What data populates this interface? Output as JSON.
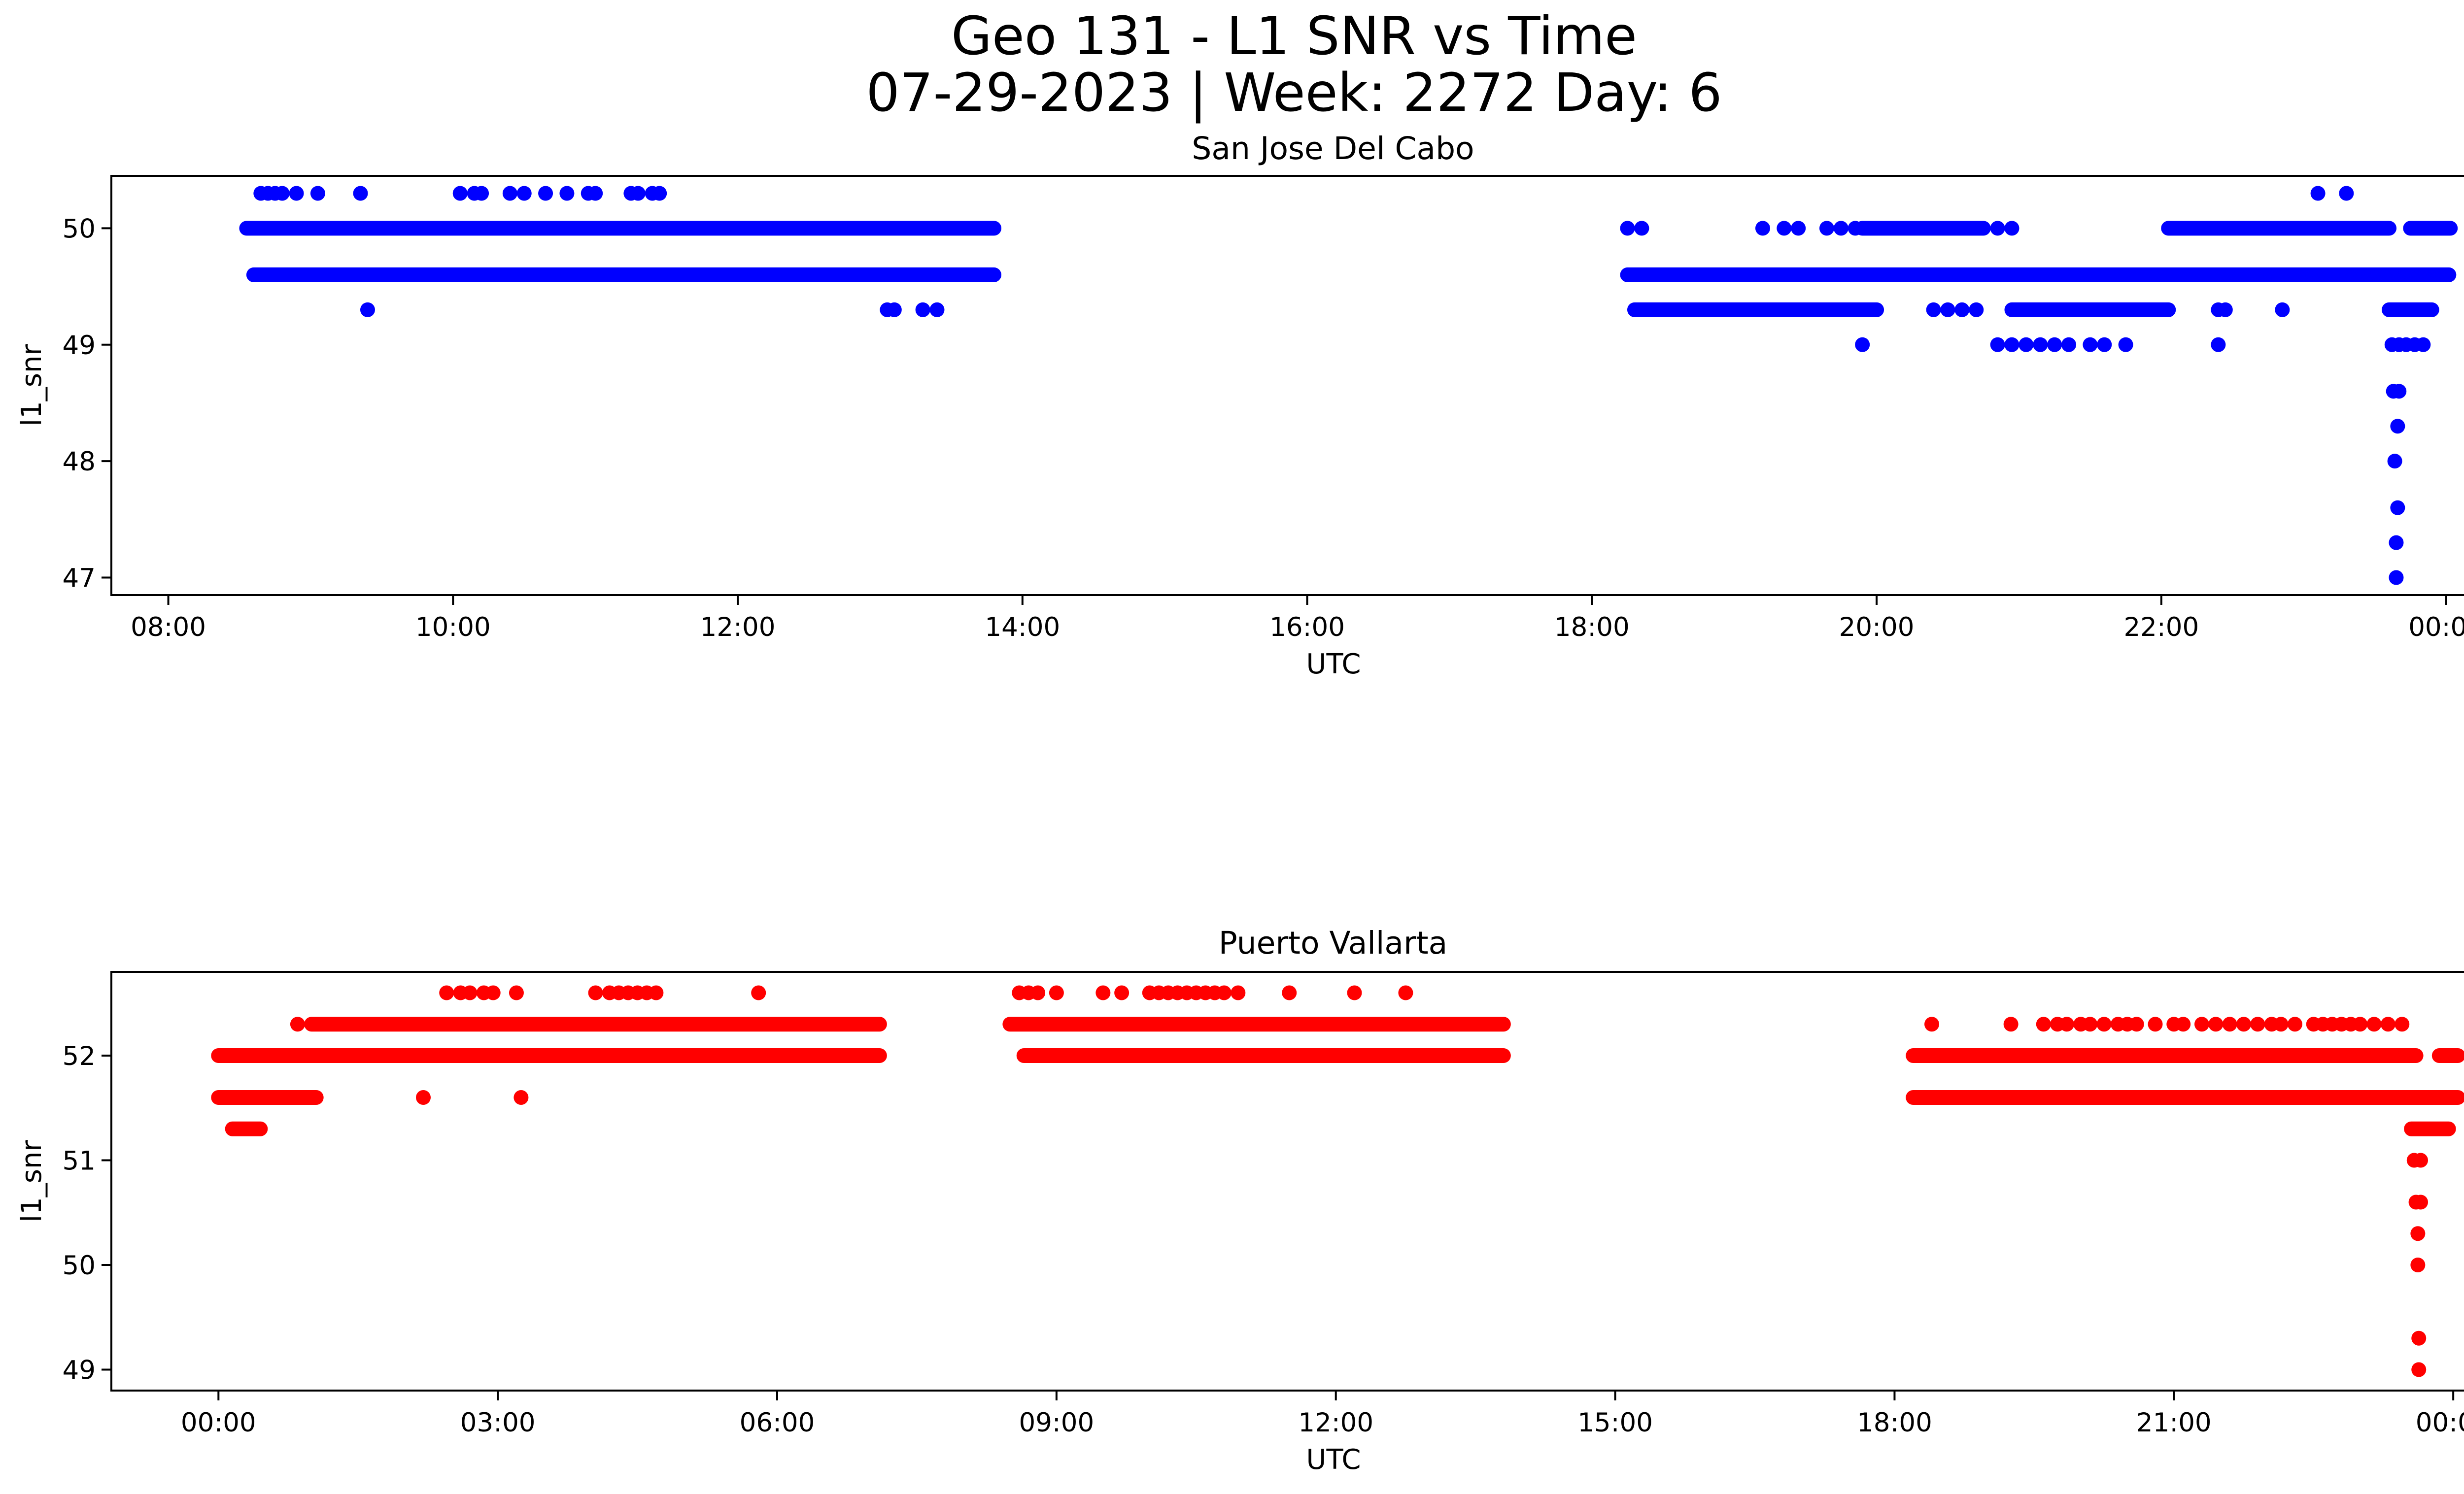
{
  "figure": {
    "title_line1": "Geo 131 - L1 SNR vs Time",
    "title_line2": "07-29-2023 | Week: 2272 Day: 6"
  },
  "chart_data": [
    {
      "type": "scatter",
      "title": "San Jose Del Cabo",
      "xlabel": "UTC",
      "ylabel": "l1_snr",
      "color": "#0000ff",
      "x_unit": "hours UTC on 07-29-2023 (24 = 00:00 next day)",
      "xlim": [
        7.6,
        24.77
      ],
      "ylim": [
        46.85,
        50.45
      ],
      "xticks": [
        {
          "value": 8,
          "label": "08:00"
        },
        {
          "value": 10,
          "label": "10:00"
        },
        {
          "value": 12,
          "label": "12:00"
        },
        {
          "value": 14,
          "label": "14:00"
        },
        {
          "value": 16,
          "label": "16:00"
        },
        {
          "value": 18,
          "label": "18:00"
        },
        {
          "value": 20,
          "label": "20:00"
        },
        {
          "value": 22,
          "label": "22:00"
        },
        {
          "value": 24,
          "label": "00:00"
        }
      ],
      "yticks": [
        47,
        48,
        49,
        50
      ],
      "runs": [
        {
          "y": 50.0,
          "x0": 8.55,
          "x1": 13.8
        },
        {
          "y": 49.6,
          "x0": 8.6,
          "x1": 13.8
        },
        {
          "y": 49.6,
          "x0": 18.25,
          "x1": 24.02
        },
        {
          "y": 50.0,
          "x0": 19.9,
          "x1": 20.75
        },
        {
          "y": 50.0,
          "x0": 22.05,
          "x1": 23.6
        },
        {
          "y": 49.3,
          "x0": 18.3,
          "x1": 20.0
        },
        {
          "y": 49.3,
          "x0": 20.95,
          "x1": 22.05
        },
        {
          "y": 49.3,
          "x0": 23.6,
          "x1": 23.9
        },
        {
          "y": 50.0,
          "x0": 23.75,
          "x1": 24.03
        }
      ],
      "points": [
        [
          8.65,
          50.3
        ],
        [
          8.7,
          50.3
        ],
        [
          8.75,
          50.3
        ],
        [
          8.8,
          50.3
        ],
        [
          8.9,
          50.3
        ],
        [
          9.05,
          50.3
        ],
        [
          9.35,
          50.3
        ],
        [
          10.05,
          50.3
        ],
        [
          10.15,
          50.3
        ],
        [
          10.2,
          50.3
        ],
        [
          10.4,
          50.3
        ],
        [
          10.5,
          50.3
        ],
        [
          10.65,
          50.3
        ],
        [
          10.8,
          50.3
        ],
        [
          10.95,
          50.3
        ],
        [
          11.0,
          50.3
        ],
        [
          11.25,
          50.3
        ],
        [
          11.3,
          50.3
        ],
        [
          11.4,
          50.3
        ],
        [
          11.45,
          50.3
        ],
        [
          9.4,
          49.3
        ],
        [
          13.05,
          49.3
        ],
        [
          13.1,
          49.3
        ],
        [
          13.3,
          49.3
        ],
        [
          13.4,
          49.3
        ],
        [
          18.25,
          50.0
        ],
        [
          18.35,
          50.0
        ],
        [
          19.2,
          50.0
        ],
        [
          19.35,
          50.0
        ],
        [
          19.45,
          50.0
        ],
        [
          19.65,
          50.0
        ],
        [
          19.75,
          50.0
        ],
        [
          19.85,
          50.0
        ],
        [
          20.85,
          50.0
        ],
        [
          20.95,
          50.0
        ],
        [
          20.4,
          49.3
        ],
        [
          20.5,
          49.3
        ],
        [
          20.6,
          49.3
        ],
        [
          20.7,
          49.3
        ],
        [
          22.4,
          49.3
        ],
        [
          22.45,
          49.3
        ],
        [
          22.85,
          49.3
        ],
        [
          19.9,
          49.0
        ],
        [
          20.85,
          49.0
        ],
        [
          20.95,
          49.0
        ],
        [
          21.05,
          49.0
        ],
        [
          21.15,
          49.0
        ],
        [
          21.25,
          49.0
        ],
        [
          21.35,
          49.0
        ],
        [
          21.5,
          49.0
        ],
        [
          21.6,
          49.0
        ],
        [
          21.75,
          49.0
        ],
        [
          22.4,
          49.0
        ],
        [
          23.1,
          50.3
        ],
        [
          23.3,
          50.3
        ],
        [
          23.62,
          49.0
        ],
        [
          23.67,
          49.0
        ],
        [
          23.72,
          49.0
        ],
        [
          23.78,
          49.0
        ],
        [
          23.84,
          49.0
        ],
        [
          23.63,
          48.6
        ],
        [
          23.67,
          48.6
        ],
        [
          23.66,
          48.3
        ],
        [
          23.64,
          48.0
        ],
        [
          23.66,
          47.6
        ],
        [
          23.65,
          47.3
        ],
        [
          23.65,
          47.0
        ]
      ]
    },
    {
      "type": "scatter",
      "title": "Puerto Vallarta",
      "xlabel": "UTC",
      "ylabel": "l1_snr",
      "color": "#ff0000",
      "x_unit": "hours UTC on 07-29-2023 (24 = 00:00 next day)",
      "xlim": [
        -1.15,
        25.1
      ],
      "ylim": [
        48.8,
        52.8
      ],
      "xticks": [
        {
          "value": 0,
          "label": "00:00"
        },
        {
          "value": 3,
          "label": "03:00"
        },
        {
          "value": 6,
          "label": "06:00"
        },
        {
          "value": 9,
          "label": "09:00"
        },
        {
          "value": 12,
          "label": "12:00"
        },
        {
          "value": 15,
          "label": "15:00"
        },
        {
          "value": 18,
          "label": "18:00"
        },
        {
          "value": 21,
          "label": "21:00"
        },
        {
          "value": 24,
          "label": "00:00"
        }
      ],
      "yticks": [
        49,
        50,
        51,
        52
      ],
      "runs": [
        {
          "y": 52.0,
          "x0": 0.0,
          "x1": 7.1
        },
        {
          "y": 51.6,
          "x0": 0.0,
          "x1": 1.05
        },
        {
          "y": 51.3,
          "x0": 0.15,
          "x1": 0.45
        },
        {
          "y": 52.3,
          "x0": 1.0,
          "x1": 7.1
        },
        {
          "y": 52.3,
          "x0": 8.5,
          "x1": 13.8
        },
        {
          "y": 52.0,
          "x0": 8.65,
          "x1": 13.8
        },
        {
          "y": 52.0,
          "x0": 18.2,
          "x1": 23.6
        },
        {
          "y": 51.6,
          "x0": 18.2,
          "x1": 24.05
        },
        {
          "y": 51.3,
          "x0": 23.55,
          "x1": 23.95
        },
        {
          "y": 52.0,
          "x0": 23.85,
          "x1": 24.05
        }
      ],
      "points": [
        [
          0.85,
          52.3
        ],
        [
          2.2,
          51.6
        ],
        [
          3.25,
          51.6
        ],
        [
          2.45,
          52.6
        ],
        [
          2.6,
          52.6
        ],
        [
          2.7,
          52.6
        ],
        [
          2.85,
          52.6
        ],
        [
          2.95,
          52.6
        ],
        [
          3.2,
          52.6
        ],
        [
          4.05,
          52.6
        ],
        [
          4.2,
          52.6
        ],
        [
          4.3,
          52.6
        ],
        [
          4.4,
          52.6
        ],
        [
          4.5,
          52.6
        ],
        [
          4.6,
          52.6
        ],
        [
          4.7,
          52.6
        ],
        [
          5.8,
          52.6
        ],
        [
          8.6,
          52.6
        ],
        [
          8.7,
          52.6
        ],
        [
          8.8,
          52.6
        ],
        [
          9.0,
          52.6
        ],
        [
          9.5,
          52.6
        ],
        [
          9.7,
          52.6
        ],
        [
          10.0,
          52.6
        ],
        [
          10.1,
          52.6
        ],
        [
          10.2,
          52.6
        ],
        [
          10.3,
          52.6
        ],
        [
          10.4,
          52.6
        ],
        [
          10.5,
          52.6
        ],
        [
          10.6,
          52.6
        ],
        [
          10.7,
          52.6
        ],
        [
          10.8,
          52.6
        ],
        [
          10.95,
          52.6
        ],
        [
          11.5,
          52.6
        ],
        [
          12.2,
          52.6
        ],
        [
          12.75,
          52.6
        ],
        [
          18.4,
          52.3
        ],
        [
          19.25,
          52.3
        ],
        [
          19.6,
          52.3
        ],
        [
          19.75,
          52.3
        ],
        [
          19.85,
          52.3
        ],
        [
          20.0,
          52.3
        ],
        [
          20.1,
          52.3
        ],
        [
          20.25,
          52.3
        ],
        [
          20.4,
          52.3
        ],
        [
          20.5,
          52.3
        ],
        [
          20.6,
          52.3
        ],
        [
          20.8,
          52.3
        ],
        [
          21.0,
          52.3
        ],
        [
          21.1,
          52.3
        ],
        [
          21.3,
          52.3
        ],
        [
          21.45,
          52.3
        ],
        [
          21.6,
          52.3
        ],
        [
          21.75,
          52.3
        ],
        [
          21.9,
          52.3
        ],
        [
          22.05,
          52.3
        ],
        [
          22.15,
          52.3
        ],
        [
          22.3,
          52.3
        ],
        [
          22.5,
          52.3
        ],
        [
          22.6,
          52.3
        ],
        [
          22.7,
          52.3
        ],
        [
          22.8,
          52.3
        ],
        [
          22.9,
          52.3
        ],
        [
          23.0,
          52.3
        ],
        [
          23.15,
          52.3
        ],
        [
          23.3,
          52.3
        ],
        [
          23.45,
          52.3
        ],
        [
          23.58,
          51.0
        ],
        [
          23.65,
          51.0
        ],
        [
          23.6,
          50.6
        ],
        [
          23.65,
          50.6
        ],
        [
          23.62,
          50.3
        ],
        [
          23.62,
          50.0
        ],
        [
          23.63,
          49.3
        ],
        [
          23.63,
          49.0
        ]
      ]
    }
  ]
}
